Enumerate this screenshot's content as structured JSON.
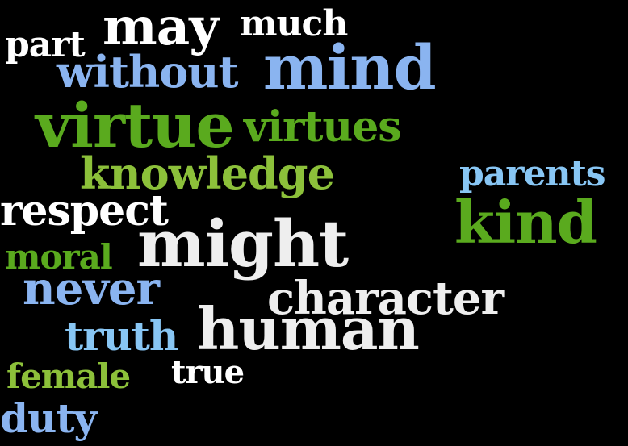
{
  "words": {
    "may": "may",
    "much": "much",
    "part": "part",
    "without": "without",
    "mind": "mind",
    "virtue": "virtue",
    "virtues": "virtues",
    "knowledge": "knowledge",
    "parents": "parents",
    "respect": "respect",
    "kind": "kind",
    "moral": "moral",
    "might": "might",
    "never": "never",
    "character": "character",
    "truth": "truth",
    "human": "human",
    "female": "female",
    "true": "true",
    "duty": "duty"
  },
  "colors": {
    "background": "#000000",
    "white": "#ffffff",
    "grey": "#eeeeee",
    "green": "#5aaa1e",
    "lime": "#8cc03a",
    "blue": "#8ab4f0",
    "sky": "#88c6f4"
  }
}
